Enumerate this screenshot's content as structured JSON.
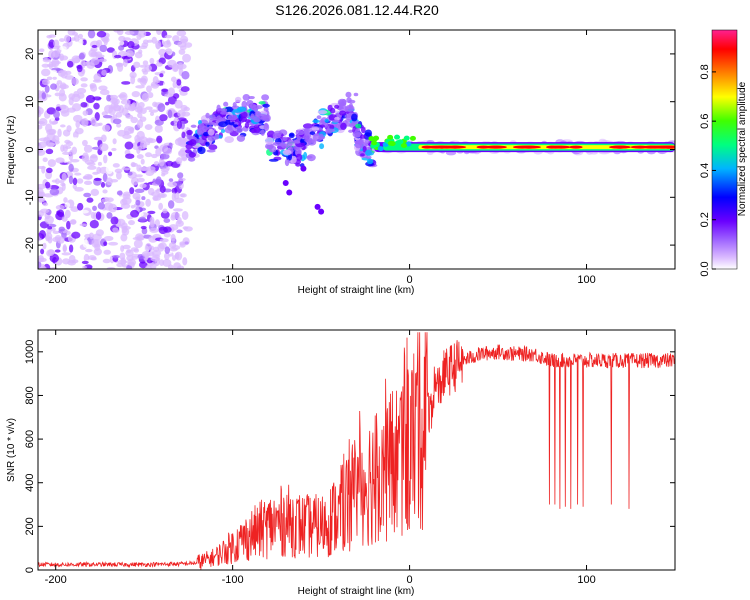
{
  "title": "S126.2026.081.12.44.R20",
  "chart_data": [
    {
      "type": "heatmap",
      "title": "S126.2026.081.12.44.R20",
      "xlabel": "Height of straight line (km)",
      "ylabel": "Frequency (Hz)",
      "xlim": [
        -210,
        150
      ],
      "ylim": [
        -25,
        25
      ],
      "xticks": [
        -200,
        -100,
        0,
        100
      ],
      "yticks": [
        -20,
        -10,
        0,
        10,
        20
      ],
      "colorbar": {
        "label": "Normalized spectral amplitude",
        "range": [
          0,
          0.97
        ],
        "ticks": [
          "0.0",
          "0.2",
          "0.4",
          "0.6",
          "0.8"
        ],
        "tick_values": [
          0,
          0.2,
          0.4,
          0.6,
          0.8
        ],
        "colors": [
          "#ffffff",
          "#d9b8ff",
          "#a066ff",
          "#6a00ff",
          "#0000ff",
          "#00b4ff",
          "#00ff80",
          "#40ff00",
          "#ffff00",
          "#ff8000",
          "#ff0000",
          "#ff2090"
        ]
      },
      "regions": [
        {
          "name": "scattered noise",
          "x_range": [
            -210,
            -125
          ],
          "freq_range": [
            -25,
            25
          ],
          "amplitude": 0.1
        },
        {
          "name": "onset",
          "x_range": [
            -125,
            -20
          ],
          "freq_range": [
            -14,
            10
          ],
          "amplitude": 0.25
        },
        {
          "name": "carrier line",
          "x_range": [
            -20,
            150
          ],
          "freq_center": 0.5,
          "amplitude": 0.9
        }
      ]
    },
    {
      "type": "line",
      "xlabel": "Height of straight line (km)",
      "ylabel": "SNR (10 * v/v)",
      "xlim": [
        -210,
        150
      ],
      "ylim": [
        0,
        1100
      ],
      "xticks": [
        -200,
        -100,
        0,
        100
      ],
      "yticks": [
        0,
        200,
        400,
        600,
        800,
        1000
      ],
      "color": "#ee2222",
      "series": [
        {
          "name": "SNR",
          "x": [
            -210,
            -180,
            -150,
            -130,
            -120,
            -110,
            -100,
            -90,
            -80,
            -70,
            -60,
            -50,
            -40,
            -30,
            -20,
            -10,
            0,
            10,
            20,
            30,
            40,
            50,
            60,
            70,
            80,
            90,
            100,
            110,
            120,
            130,
            140,
            150
          ],
          "y": [
            25,
            25,
            25,
            28,
            32,
            60,
            110,
            160,
            200,
            230,
            200,
            200,
            260,
            380,
            430,
            480,
            560,
            720,
            900,
            960,
            990,
            1000,
            990,
            990,
            960,
            960,
            960,
            960,
            960,
            960,
            960,
            960
          ]
        }
      ],
      "dropouts": [
        {
          "x": 79,
          "y": 300
        },
        {
          "x": 82,
          "y": 300
        },
        {
          "x": 85,
          "y": 280
        },
        {
          "x": 88,
          "y": 290
        },
        {
          "x": 91,
          "y": 280
        },
        {
          "x": 95,
          "y": 300
        },
        {
          "x": 98,
          "y": 290
        },
        {
          "x": 114,
          "y": 300
        },
        {
          "x": 124,
          "y": 280
        }
      ]
    }
  ]
}
